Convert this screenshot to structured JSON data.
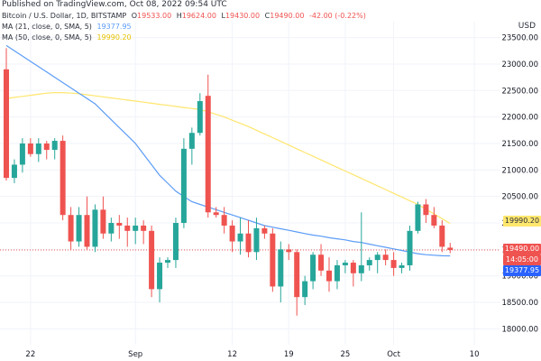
{
  "header": {
    "published": "Published on TradingView.com, Oct 08, 2022 09:54 UTC",
    "symbol": "Bitcoin / U.S. Dollar, 1D, BITSTAMP",
    "o_label": "O",
    "o_value": "19533.00",
    "h_label": "H",
    "h_value": "19624.00",
    "l_label": "L",
    "l_value": "19430.00",
    "c_label": "C",
    "c_value": "19490.00",
    "change": "-42.00 (-0.22%)"
  },
  "indicators": [
    {
      "label": "MA (21, close, 0, SMA, 5)",
      "value": "19377.95",
      "color": "#5b9cf6"
    },
    {
      "label": "MA (50, close, 0, SMA, 5)",
      "value": "19990.20",
      "color": "#ffe66d"
    }
  ],
  "axis": {
    "currency": "USD",
    "y_ticks": [
      "23500.00",
      "23000.00",
      "22500.00",
      "22000.00",
      "21500.00",
      "21000.00",
      "20500.00",
      "20000.00",
      "19500.00",
      "19000.00",
      "18500.00",
      "18000.00"
    ],
    "x_ticks": [
      "22",
      "Sep",
      "12",
      "19",
      "25",
      "Oct",
      "10"
    ]
  },
  "price_tags": {
    "ma50": "19990.20",
    "last": "19490.00",
    "countdown": "14:05:00",
    "ma21": "19377.95"
  },
  "colors": {
    "up": "#26a69a",
    "down": "#ef5350",
    "ma21": "#5b9cf6",
    "ma50": "#ffe66d"
  },
  "chart_data": {
    "type": "candlestick",
    "title": "Bitcoin / U.S. Dollar, 1D, BITSTAMP",
    "ylabel": "USD",
    "ylim": [
      17700,
      23800
    ],
    "x_ticks": [
      "22",
      "Sep",
      "12",
      "19",
      "25",
      "Oct",
      "10"
    ],
    "candles": [
      {
        "o": 22900,
        "h": 23300,
        "l": 20800,
        "c": 20850
      },
      {
        "o": 20850,
        "h": 21200,
        "l": 20750,
        "c": 21100
      },
      {
        "o": 21100,
        "h": 21600,
        "l": 20950,
        "c": 21500
      },
      {
        "o": 21500,
        "h": 21600,
        "l": 21250,
        "c": 21300
      },
      {
        "o": 21300,
        "h": 21600,
        "l": 21150,
        "c": 21500
      },
      {
        "o": 21500,
        "h": 21550,
        "l": 21200,
        "c": 21380
      },
      {
        "o": 21380,
        "h": 21600,
        "l": 21200,
        "c": 21550
      },
      {
        "o": 21550,
        "h": 21650,
        "l": 20050,
        "c": 20150
      },
      {
        "o": 20150,
        "h": 20300,
        "l": 19500,
        "c": 19650
      },
      {
        "o": 19650,
        "h": 20300,
        "l": 19550,
        "c": 20150
      },
      {
        "o": 20150,
        "h": 20500,
        "l": 19500,
        "c": 19550
      },
      {
        "o": 19550,
        "h": 20350,
        "l": 19450,
        "c": 20250
      },
      {
        "o": 20250,
        "h": 20500,
        "l": 19700,
        "c": 19800
      },
      {
        "o": 19800,
        "h": 20100,
        "l": 19650,
        "c": 20000
      },
      {
        "o": 20000,
        "h": 20150,
        "l": 19700,
        "c": 19950
      },
      {
        "o": 19950,
        "h": 20100,
        "l": 19550,
        "c": 19850
      },
      {
        "o": 19850,
        "h": 20100,
        "l": 19600,
        "c": 19950
      },
      {
        "o": 19950,
        "h": 20050,
        "l": 19600,
        "c": 19850
      },
      {
        "o": 19850,
        "h": 19950,
        "l": 18600,
        "c": 18750
      },
      {
        "o": 18750,
        "h": 19350,
        "l": 18500,
        "c": 19250
      },
      {
        "o": 19250,
        "h": 19350,
        "l": 19150,
        "c": 19300
      },
      {
        "o": 19300,
        "h": 20100,
        "l": 19150,
        "c": 20000
      },
      {
        "o": 20000,
        "h": 21600,
        "l": 19900,
        "c": 21400
      },
      {
        "o": 21400,
        "h": 21800,
        "l": 21100,
        "c": 21700
      },
      {
        "o": 21700,
        "h": 22450,
        "l": 21650,
        "c": 22300
      },
      {
        "o": 22400,
        "h": 22800,
        "l": 20100,
        "c": 20200
      },
      {
        "o": 20200,
        "h": 20300,
        "l": 20100,
        "c": 20150
      },
      {
        "o": 20150,
        "h": 20300,
        "l": 19800,
        "c": 19950
      },
      {
        "o": 19950,
        "h": 20050,
        "l": 19450,
        "c": 19650
      },
      {
        "o": 19650,
        "h": 20100,
        "l": 19400,
        "c": 19800
      },
      {
        "o": 19800,
        "h": 20050,
        "l": 19350,
        "c": 19450
      },
      {
        "o": 19450,
        "h": 20100,
        "l": 19300,
        "c": 19900
      },
      {
        "o": 19900,
        "h": 19950,
        "l": 19700,
        "c": 19800
      },
      {
        "o": 19800,
        "h": 19900,
        "l": 18700,
        "c": 18800
      },
      {
        "o": 18800,
        "h": 19650,
        "l": 18500,
        "c": 19500
      },
      {
        "o": 19500,
        "h": 19600,
        "l": 19300,
        "c": 19450
      },
      {
        "o": 19450,
        "h": 19500,
        "l": 18250,
        "c": 18600
      },
      {
        "o": 18600,
        "h": 19000,
        "l": 18450,
        "c": 18900
      },
      {
        "o": 18900,
        "h": 19450,
        "l": 18750,
        "c": 19400
      },
      {
        "o": 19400,
        "h": 19600,
        "l": 19000,
        "c": 19100
      },
      {
        "o": 19100,
        "h": 19350,
        "l": 18700,
        "c": 18900
      },
      {
        "o": 18900,
        "h": 19300,
        "l": 18750,
        "c": 19200
      },
      {
        "o": 19200,
        "h": 19300,
        "l": 19050,
        "c": 19250
      },
      {
        "o": 19250,
        "h": 19300,
        "l": 18800,
        "c": 19050
      },
      {
        "o": 19050,
        "h": 20200,
        "l": 18900,
        "c": 19200
      },
      {
        "o": 19200,
        "h": 19350,
        "l": 19100,
        "c": 19300
      },
      {
        "o": 19300,
        "h": 19450,
        "l": 19050,
        "c": 19400
      },
      {
        "o": 19400,
        "h": 19500,
        "l": 19200,
        "c": 19300
      },
      {
        "o": 19300,
        "h": 19450,
        "l": 19000,
        "c": 19150
      },
      {
        "o": 19150,
        "h": 19250,
        "l": 19050,
        "c": 19200
      },
      {
        "o": 19200,
        "h": 19950,
        "l": 19100,
        "c": 19850
      },
      {
        "o": 19850,
        "h": 20400,
        "l": 19800,
        "c": 20350
      },
      {
        "o": 20350,
        "h": 20450,
        "l": 20000,
        "c": 20150
      },
      {
        "o": 20150,
        "h": 20300,
        "l": 19900,
        "c": 19950
      },
      {
        "o": 19950,
        "h": 20050,
        "l": 19450,
        "c": 19550
      },
      {
        "o": 19533,
        "h": 19624,
        "l": 19430,
        "c": 19490
      }
    ],
    "series": [
      {
        "name": "MA (21, close, 0, SMA, 5)",
        "values": [
          23350,
          23250,
          23150,
          23050,
          22950,
          22850,
          22750,
          22650,
          22550,
          22450,
          22350,
          22250,
          22100,
          21950,
          21800,
          21650,
          21500,
          21300,
          21100,
          20900,
          20750,
          20600,
          20500,
          20400,
          20350,
          20300,
          20250,
          20200,
          20150,
          20100,
          20050,
          20000,
          19950,
          19920,
          19890,
          19860,
          19830,
          19800,
          19770,
          19750,
          19720,
          19700,
          19680,
          19650,
          19630,
          19600,
          19570,
          19540,
          19510,
          19480,
          19450,
          19420,
          19400,
          19390,
          19380,
          19378
        ]
      },
      {
        "name": "MA (50, close, 0, SMA, 5)",
        "values": [
          22350,
          22370,
          22390,
          22410,
          22430,
          22450,
          22460,
          22460,
          22450,
          22440,
          22420,
          22400,
          22380,
          22360,
          22340,
          22320,
          22300,
          22280,
          22260,
          22240,
          22220,
          22200,
          22180,
          22160,
          22140,
          22100,
          22050,
          22000,
          21940,
          21880,
          21820,
          21750,
          21680,
          21610,
          21540,
          21470,
          21400,
          21330,
          21260,
          21190,
          21120,
          21050,
          20980,
          20910,
          20840,
          20770,
          20700,
          20630,
          20560,
          20490,
          20420,
          20350,
          20260,
          20170,
          20080,
          19990
        ]
      }
    ]
  }
}
